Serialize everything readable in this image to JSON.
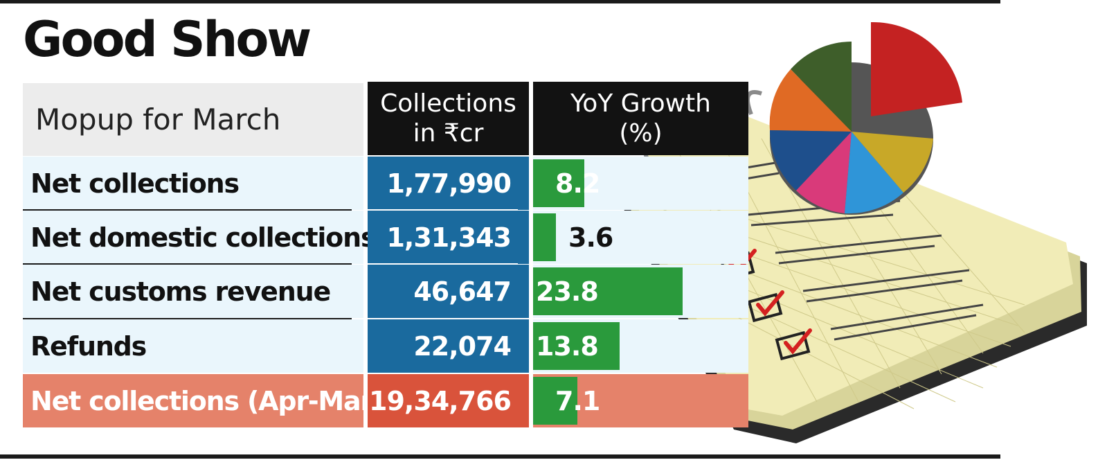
{
  "title": "Good Show",
  "table": {
    "label_header": "Mopup for March",
    "collections_header": [
      "Collections",
      "in ₹cr"
    ],
    "growth_header": [
      "YoY Growth",
      "(%)"
    ]
  },
  "chart_data": {
    "type": "table",
    "title": "Good Show",
    "columns": [
      "Mopup for March",
      "Collections in ₹cr",
      "YoY Growth (%)"
    ],
    "rows": [
      {
        "label": "Net collections",
        "collections": "1,77,990",
        "growth": 8.2,
        "growth_text": "8.2"
      },
      {
        "label": "Net domestic collections",
        "collections": "1,31,343",
        "growth": 3.6,
        "growth_text": "3.6"
      },
      {
        "label": "Net customs revenue",
        "collections": "46,647",
        "growth": 23.8,
        "growth_text": "23.8"
      },
      {
        "label": "Refunds",
        "collections": "22,074",
        "growth": 13.8,
        "growth_text": "13.8"
      }
    ],
    "total_row": {
      "label": "Net collections (Apr-Mar)",
      "collections": "19,34,766",
      "growth": 7.1,
      "growth_text": "7.1"
    },
    "growth_bar_max": 23.8
  },
  "colors": {
    "header": "#121212",
    "value_cells": "#1a6a9e",
    "growth_bars": "#2a9a3c",
    "row_background": "#eaf6fc",
    "total_row": "#e5826a",
    "total_value": "#d9533b"
  },
  "illustration": {
    "icon": "notepad-checklist-pie-chart-icon"
  }
}
